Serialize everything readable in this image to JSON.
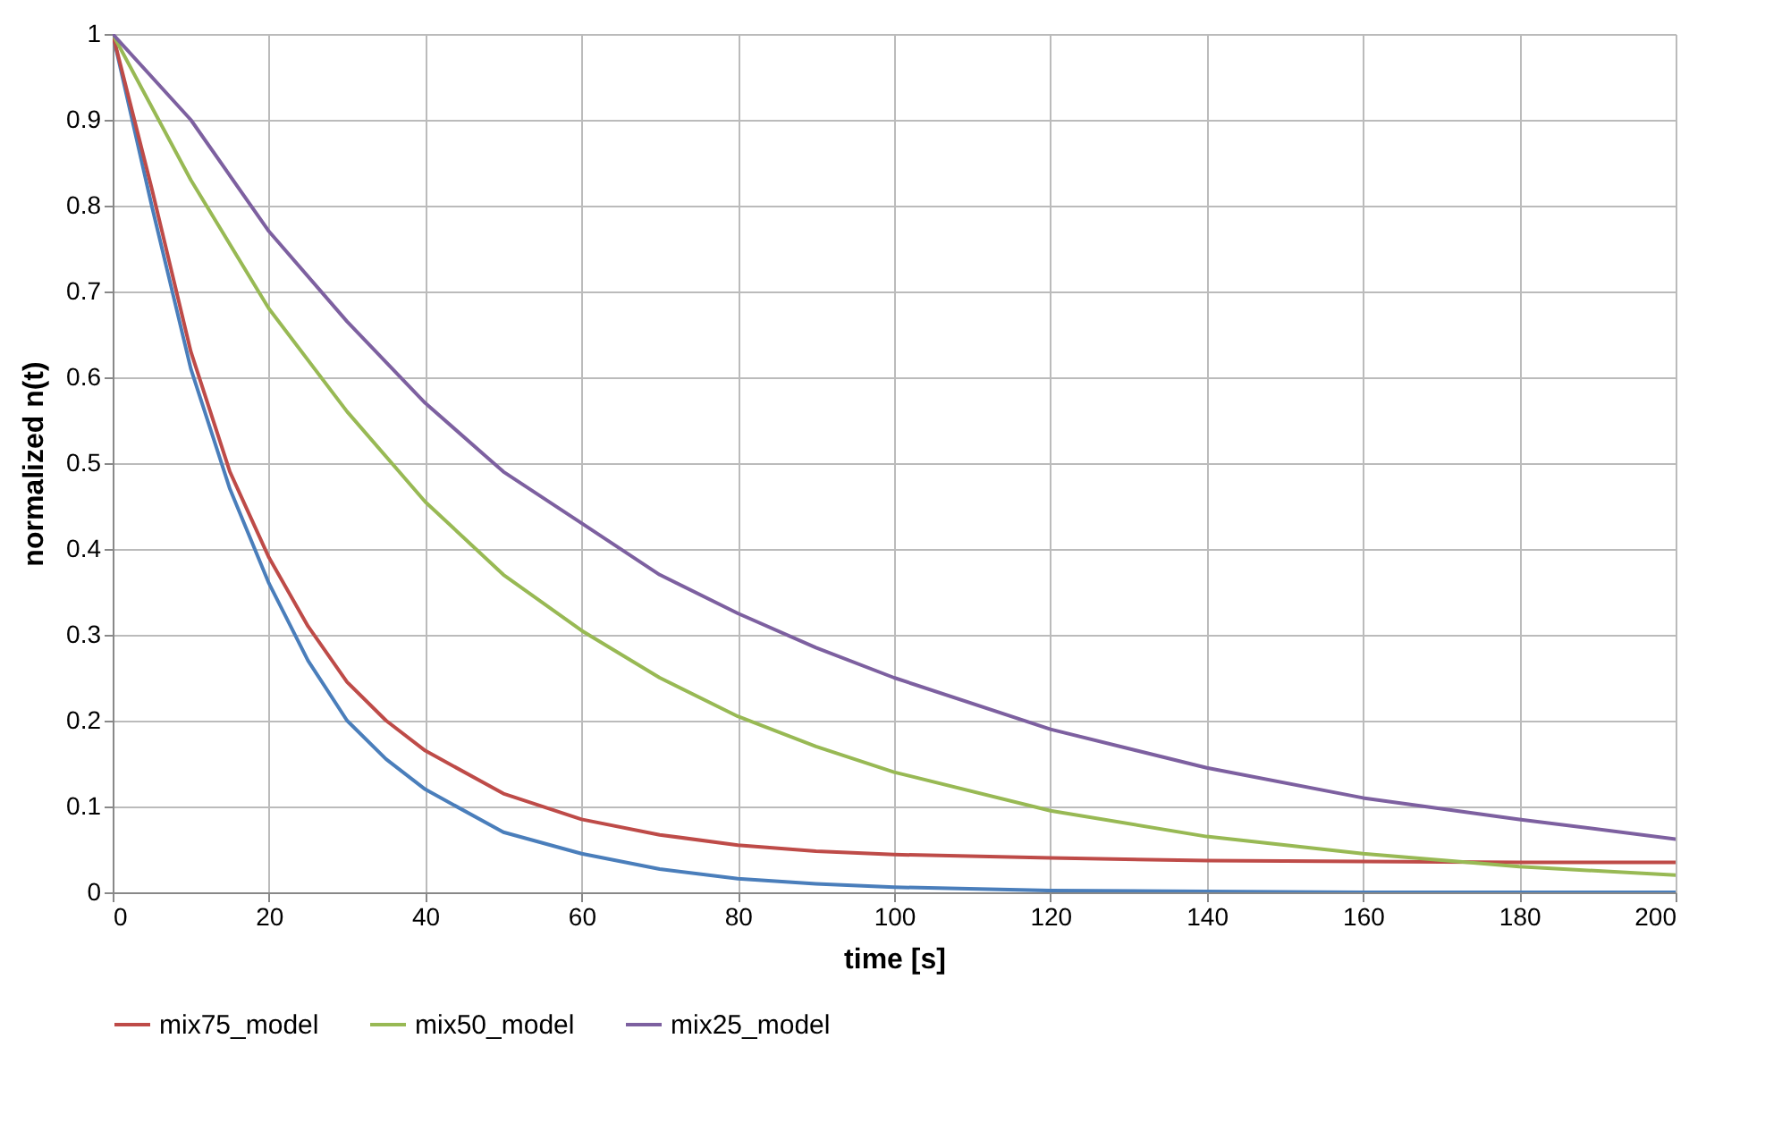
{
  "chart_data": {
    "type": "line",
    "xlabel": "time [s]",
    "ylabel": "normalized n(t)",
    "xlim": [
      0,
      200
    ],
    "ylim": [
      0,
      1
    ],
    "xticks": [
      0,
      20,
      40,
      60,
      80,
      100,
      120,
      140,
      160,
      180,
      200
    ],
    "yticks": [
      0,
      0.1,
      0.2,
      0.3,
      0.4,
      0.5,
      0.6,
      0.7,
      0.8,
      0.9,
      1
    ],
    "grid": true,
    "legend": "bottom",
    "marker": "none",
    "line_style": "solid",
    "series": [
      {
        "color": "#4a7ebb",
        "x": [
          0,
          5,
          10,
          15,
          20,
          25,
          30,
          35,
          40,
          50,
          60,
          70,
          80,
          90,
          100,
          120,
          140,
          160,
          200
        ],
        "values": [
          1,
          0.8,
          0.61,
          0.47,
          0.36,
          0.27,
          0.2,
          0.155,
          0.12,
          0.07,
          0.045,
          0.027,
          0.016,
          0.01,
          0.006,
          0.002,
          0.001,
          0,
          0
        ]
      },
      {
        "name": "mix75_model",
        "color": "#be4b48",
        "x": [
          0,
          5,
          10,
          15,
          20,
          25,
          30,
          35,
          40,
          50,
          60,
          70,
          80,
          90,
          100,
          120,
          140,
          160,
          180,
          200
        ],
        "values": [
          1,
          0.82,
          0.63,
          0.49,
          0.39,
          0.31,
          0.245,
          0.2,
          0.165,
          0.115,
          0.085,
          0.067,
          0.055,
          0.048,
          0.044,
          0.04,
          0.037,
          0.036,
          0.035,
          0.035
        ]
      },
      {
        "name": "mix50_model",
        "color": "#98b954",
        "x": [
          0,
          10,
          20,
          30,
          40,
          50,
          60,
          70,
          80,
          90,
          100,
          120,
          140,
          160,
          180,
          200
        ],
        "values": [
          1,
          0.83,
          0.68,
          0.56,
          0.455,
          0.37,
          0.305,
          0.25,
          0.205,
          0.17,
          0.14,
          0.095,
          0.065,
          0.045,
          0.03,
          0.02
        ]
      },
      {
        "name": "mix25_model",
        "color": "#7d60a0",
        "x": [
          0,
          10,
          20,
          30,
          40,
          50,
          60,
          70,
          80,
          90,
          100,
          120,
          140,
          160,
          180,
          200
        ],
        "values": [
          1,
          0.9,
          0.77,
          0.665,
          0.57,
          0.49,
          0.43,
          0.37,
          0.325,
          0.285,
          0.25,
          0.19,
          0.145,
          0.11,
          0.085,
          0.062
        ]
      }
    ]
  }
}
